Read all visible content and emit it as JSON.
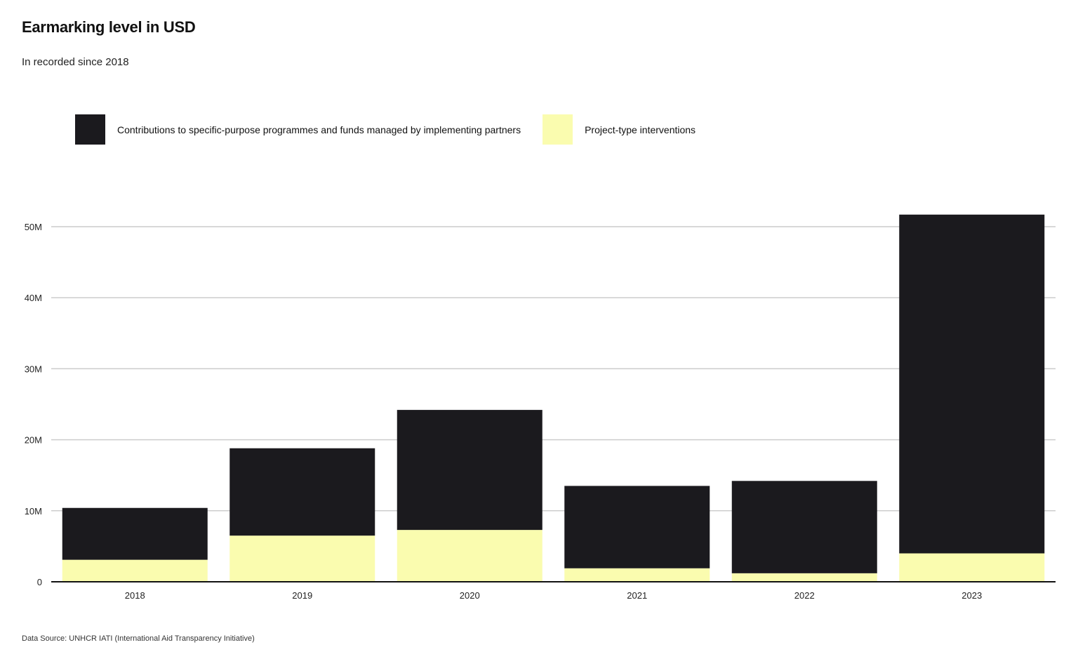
{
  "title": "Earmarking level in USD",
  "subtitle": "In recorded since 2018",
  "source": "Data Source: UNHCR IATI (International Aid Transparency Initiative)",
  "colors": {
    "contributions": "#1b1a1e",
    "project": "#fafcaf",
    "grid": "#cccccc",
    "axis": "#111111"
  },
  "legend": [
    {
      "label": "Contributions to specific-purpose programmes and funds managed by implementing partners",
      "color": "#1b1a1e"
    },
    {
      "label": "Project-type interventions",
      "color": "#fafcaf"
    }
  ],
  "chart_data": {
    "type": "bar",
    "stacked": true,
    "categories": [
      "2018",
      "2019",
      "2020",
      "2021",
      "2022",
      "2023"
    ],
    "series": [
      {
        "name": "Project-type interventions",
        "color": "#fafcaf",
        "values": [
          3.1,
          6.5,
          7.3,
          1.9,
          1.2,
          4.0
        ]
      },
      {
        "name": "Contributions to specific-purpose programmes and funds managed by implementing partners",
        "color": "#1b1a1e",
        "values": [
          7.3,
          12.3,
          16.9,
          11.6,
          13.0,
          47.7
        ]
      }
    ],
    "title": "Earmarking level in USD",
    "subtitle": "In recorded since 2018",
    "ylim": [
      0,
      55
    ],
    "yticks": [
      0,
      10,
      20,
      30,
      40,
      50
    ],
    "ytick_labels": [
      "0",
      "10M",
      "20M",
      "30M",
      "40M",
      "50M"
    ],
    "grid": true,
    "legend_position": "top-left"
  }
}
